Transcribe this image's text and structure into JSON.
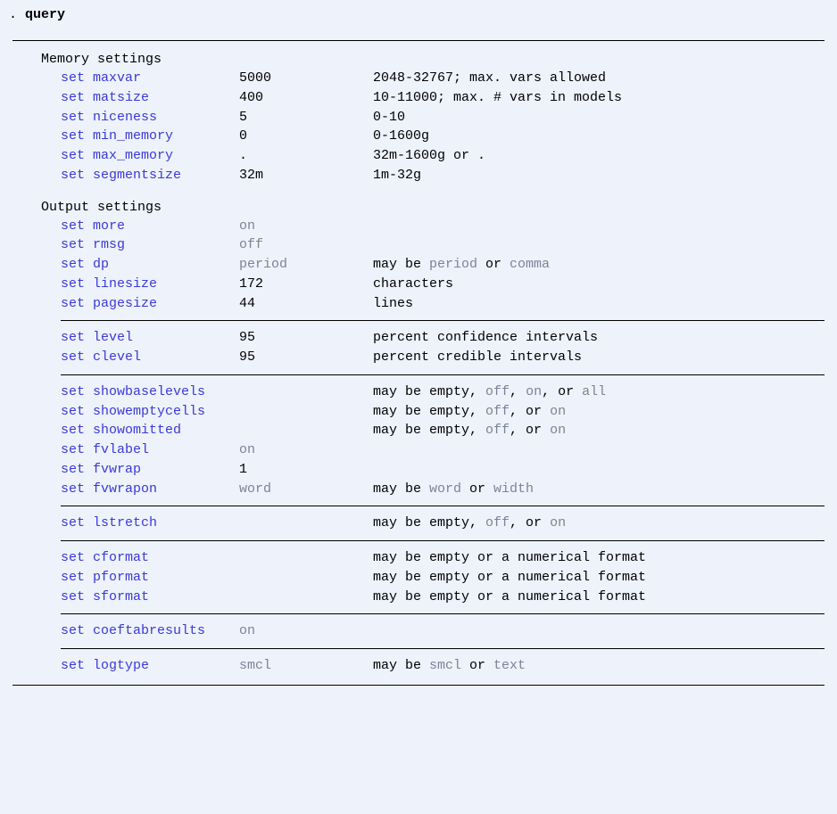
{
  "command": {
    "prefix": ". ",
    "text": "query"
  },
  "memory": {
    "title": "Memory settings",
    "rows": [
      {
        "name": "set maxvar",
        "val": "5000",
        "val_gray": false,
        "desc": "2048-32767; max. vars allowed"
      },
      {
        "name": "set matsize",
        "val": "400",
        "val_gray": false,
        "desc": "10-11000; max. # vars in models"
      },
      {
        "name": "set niceness",
        "val": "5",
        "val_gray": false,
        "desc": "0-10"
      },
      {
        "name": "set min_memory",
        "val": "0",
        "val_gray": false,
        "desc": "0-1600g"
      },
      {
        "name": "set max_memory",
        "val": ".",
        "val_gray": false,
        "desc": "32m-1600g or ."
      },
      {
        "name": "set segmentsize",
        "val": "32m",
        "val_gray": false,
        "desc": "1m-32g"
      }
    ]
  },
  "output_title": "Output settings",
  "g1": [
    {
      "name": "set more",
      "val": "on",
      "val_gray": true,
      "desc_segs": []
    },
    {
      "name": "set rmsg",
      "val": "off",
      "val_gray": true,
      "desc_segs": []
    },
    {
      "name": "set dp",
      "val": "period",
      "val_gray": true,
      "desc_segs": [
        {
          "t": "may be ",
          "g": false
        },
        {
          "t": "period",
          "g": true
        },
        {
          "t": " or ",
          "g": false
        },
        {
          "t": "comma",
          "g": true
        }
      ]
    },
    {
      "name": "set linesize",
      "val": "172",
      "val_gray": false,
      "desc_segs": [
        {
          "t": "characters",
          "g": false
        }
      ]
    },
    {
      "name": "set pagesize",
      "val": "44",
      "val_gray": false,
      "desc_segs": [
        {
          "t": "lines",
          "g": false
        }
      ]
    }
  ],
  "g2": [
    {
      "name": "set level",
      "val": "95",
      "val_gray": false,
      "desc_segs": [
        {
          "t": "percent confidence intervals",
          "g": false
        }
      ]
    },
    {
      "name": "set clevel",
      "val": "95",
      "val_gray": false,
      "desc_segs": [
        {
          "t": "percent credible intervals",
          "g": false
        }
      ]
    }
  ],
  "g3": [
    {
      "name": "set showbaselevels",
      "val": "",
      "val_gray": false,
      "desc_segs": [
        {
          "t": "may be empty, ",
          "g": false
        },
        {
          "t": "off",
          "g": true
        },
        {
          "t": ", ",
          "g": false
        },
        {
          "t": "on",
          "g": true
        },
        {
          "t": ", or ",
          "g": false
        },
        {
          "t": "all",
          "g": true
        }
      ]
    },
    {
      "name": "set showemptycells",
      "val": "",
      "val_gray": false,
      "desc_segs": [
        {
          "t": "may be empty, ",
          "g": false
        },
        {
          "t": "off",
          "g": true
        },
        {
          "t": ", or ",
          "g": false
        },
        {
          "t": "on",
          "g": true
        }
      ]
    },
    {
      "name": "set showomitted",
      "val": "",
      "val_gray": false,
      "desc_segs": [
        {
          "t": "may be empty, ",
          "g": false
        },
        {
          "t": "off",
          "g": true
        },
        {
          "t": ", or ",
          "g": false
        },
        {
          "t": "on",
          "g": true
        }
      ]
    },
    {
      "name": "set fvlabel",
      "val": "on",
      "val_gray": true,
      "desc_segs": []
    },
    {
      "name": "set fvwrap",
      "val": "1",
      "val_gray": false,
      "desc_segs": []
    },
    {
      "name": "set fvwrapon",
      "val": "word",
      "val_gray": true,
      "desc_segs": [
        {
          "t": "may be ",
          "g": false
        },
        {
          "t": "word",
          "g": true
        },
        {
          "t": " or ",
          "g": false
        },
        {
          "t": "width",
          "g": true
        }
      ]
    }
  ],
  "g4": [
    {
      "name": "set lstretch",
      "val": "",
      "val_gray": false,
      "desc_segs": [
        {
          "t": "may be empty, ",
          "g": false
        },
        {
          "t": "off",
          "g": true
        },
        {
          "t": ", or ",
          "g": false
        },
        {
          "t": "on",
          "g": true
        }
      ]
    }
  ],
  "g5": [
    {
      "name": "set cformat",
      "val": "",
      "val_gray": false,
      "desc_segs": [
        {
          "t": "may be empty or a numerical format",
          "g": false
        }
      ]
    },
    {
      "name": "set pformat",
      "val": "",
      "val_gray": false,
      "desc_segs": [
        {
          "t": "may be empty or a numerical format",
          "g": false
        }
      ]
    },
    {
      "name": "set sformat",
      "val": "",
      "val_gray": false,
      "desc_segs": [
        {
          "t": "may be empty or a numerical format",
          "g": false
        }
      ]
    }
  ],
  "g6": [
    {
      "name": "set coeftabresults",
      "val": "on",
      "val_gray": true,
      "desc_segs": []
    }
  ],
  "g7": [
    {
      "name": "set logtype",
      "val": "smcl",
      "val_gray": true,
      "desc_segs": [
        {
          "t": "may be ",
          "g": false
        },
        {
          "t": "smcl",
          "g": true
        },
        {
          "t": " or ",
          "g": false
        },
        {
          "t": "text",
          "g": true
        }
      ]
    }
  ],
  "colors": {
    "background": "#eef2fb",
    "keyword": "#3a3ad6",
    "gray": "#7a8497",
    "text": "#000000",
    "border": "#000000"
  }
}
